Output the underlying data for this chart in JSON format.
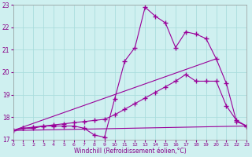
{
  "xlabel": "Windchill (Refroidissement éolien,°C)",
  "xlim": [
    0,
    23
  ],
  "ylim": [
    17,
    23
  ],
  "yticks": [
    17,
    18,
    19,
    20,
    21,
    22,
    23
  ],
  "xticks": [
    0,
    1,
    2,
    3,
    4,
    5,
    6,
    7,
    8,
    9,
    10,
    11,
    12,
    13,
    14,
    15,
    16,
    17,
    18,
    19,
    20,
    21,
    22,
    23
  ],
  "bg_color": "#cff0f0",
  "grid_color": "#aadddd",
  "line_color": "#990099",
  "line1_x": [
    0,
    1,
    2,
    3,
    4,
    5,
    6,
    7,
    8,
    9,
    10,
    11,
    12,
    13,
    14,
    15,
    16,
    17,
    18,
    19,
    20,
    21,
    22,
    23
  ],
  "line1_y": [
    17.4,
    17.5,
    17.5,
    17.6,
    17.6,
    17.6,
    17.6,
    17.5,
    17.2,
    17.1,
    18.8,
    20.5,
    21.1,
    22.9,
    22.5,
    22.2,
    21.1,
    21.8,
    21.7,
    21.5,
    20.6,
    19.5,
    17.8,
    17.6
  ],
  "line2_x": [
    0,
    1,
    2,
    3,
    4,
    5,
    6,
    7,
    8,
    9,
    10,
    11,
    12,
    13,
    14,
    15,
    16,
    17,
    18,
    19,
    20,
    21,
    22,
    23
  ],
  "line2_y": [
    17.4,
    17.5,
    17.55,
    17.6,
    17.65,
    17.7,
    17.75,
    17.8,
    17.85,
    17.9,
    18.1,
    18.35,
    18.6,
    18.85,
    19.1,
    19.35,
    19.6,
    19.9,
    19.6,
    19.6,
    19.6,
    18.5,
    17.85,
    17.6
  ],
  "line3_x": [
    0,
    23
  ],
  "line3_y": [
    17.4,
    17.6
  ],
  "line4_x": [
    0,
    20
  ],
  "line4_y": [
    17.4,
    20.6
  ]
}
